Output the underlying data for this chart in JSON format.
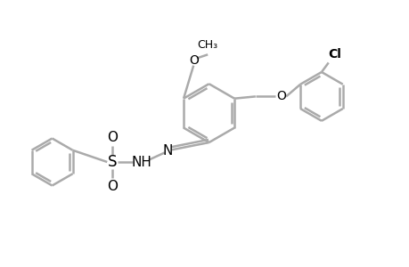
{
  "background_color": "#ffffff",
  "line_color": "#aaaaaa",
  "text_color": "#000000",
  "line_width": 1.8,
  "font_size": 10,
  "fig_width": 4.6,
  "fig_height": 3.0,
  "dpi": 100,
  "xlim": [
    0,
    10
  ],
  "ylim": [
    0,
    6.5
  ]
}
